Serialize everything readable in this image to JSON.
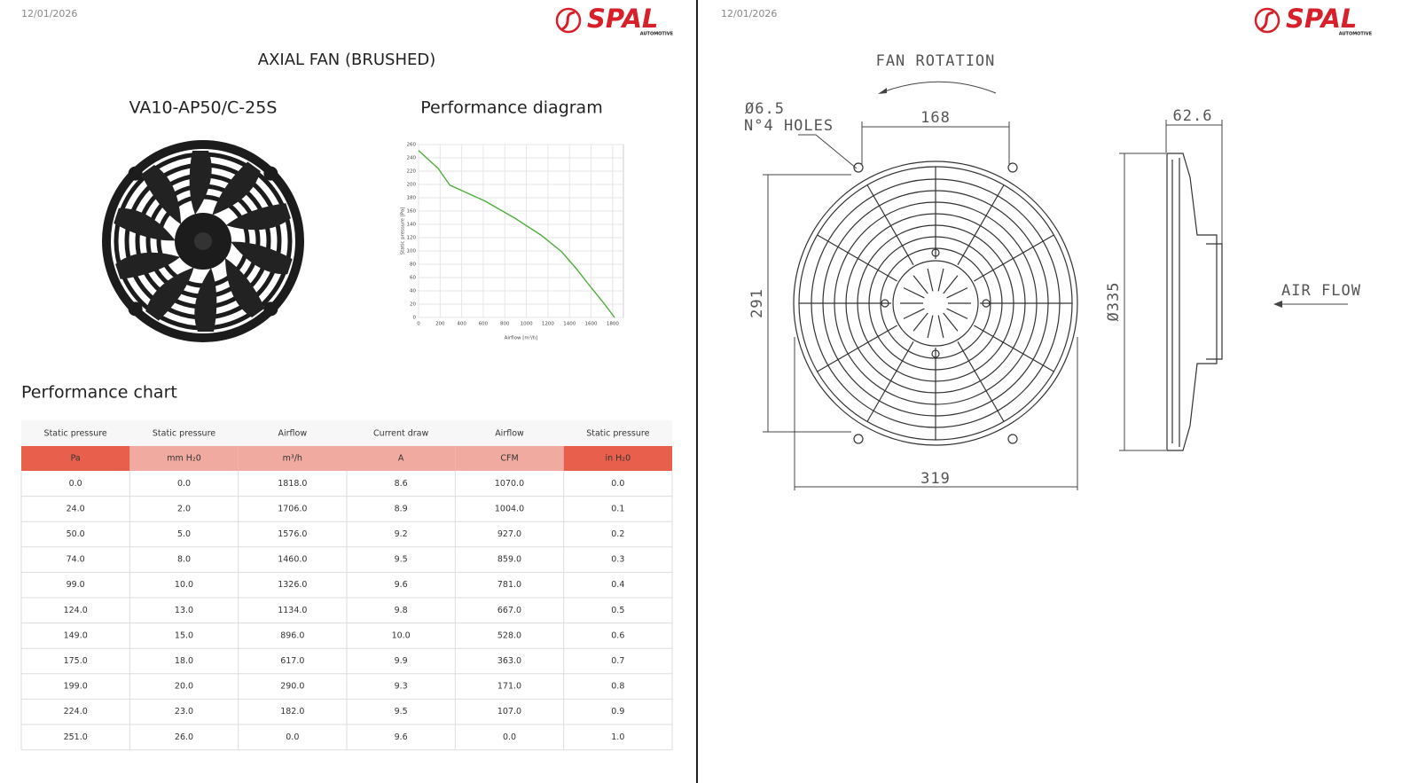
{
  "left": {
    "date": "12/01/2026",
    "logo": {
      "brand": "SPAL",
      "sub": "AUTOMOTIVE"
    },
    "title": "AXIAL FAN (BRUSHED)",
    "model": "VA10-AP50/C-25S",
    "diagram_title": "Performance diagram",
    "chart_title": "Performance chart"
  },
  "chart_data": {
    "type": "line",
    "x_label": "Airflow [m³/h]",
    "y_label": "Static pressure [Pa]",
    "x": [
      0,
      182,
      290,
      617,
      896,
      1134,
      1326,
      1460,
      1576,
      1706,
      1818
    ],
    "series": [
      {
        "color": "#4caf3a",
        "values": [
          251,
          224,
          199,
          175,
          149,
          124,
          99,
          74,
          50,
          24,
          0
        ]
      }
    ],
    "xlim": [
      0,
      1900
    ],
    "ylim": [
      0,
      260
    ],
    "xticks": [
      0,
      200,
      400,
      600,
      800,
      1000,
      1200,
      1400,
      1600,
      1800
    ],
    "yticks": [
      0,
      20,
      40,
      60,
      80,
      100,
      120,
      140,
      160,
      180,
      200,
      220,
      240,
      260
    ],
    "grid": true
  },
  "table": {
    "headers": [
      "Static pressure",
      "Static pressure",
      "Airflow",
      "Current draw",
      "Airflow",
      "Static pressure"
    ],
    "units": [
      "Pa",
      "mm H₂0",
      "m³/h",
      "A",
      "CFM",
      "in H₂0"
    ],
    "rows": [
      [
        "0.0",
        "0.0",
        "1818.0",
        "8.6",
        "1070.0",
        "0.0"
      ],
      [
        "24.0",
        "2.0",
        "1706.0",
        "8.9",
        "1004.0",
        "0.1"
      ],
      [
        "50.0",
        "5.0",
        "1576.0",
        "9.2",
        "927.0",
        "0.2"
      ],
      [
        "74.0",
        "8.0",
        "1460.0",
        "9.5",
        "859.0",
        "0.3"
      ],
      [
        "99.0",
        "10.0",
        "1326.0",
        "9.6",
        "781.0",
        "0.4"
      ],
      [
        "124.0",
        "13.0",
        "1134.0",
        "9.8",
        "667.0",
        "0.5"
      ],
      [
        "149.0",
        "15.0",
        "896.0",
        "10.0",
        "528.0",
        "0.6"
      ],
      [
        "175.0",
        "18.0",
        "617.0",
        "9.9",
        "363.0",
        "0.7"
      ],
      [
        "199.0",
        "20.0",
        "290.0",
        "9.3",
        "171.0",
        "0.8"
      ],
      [
        "224.0",
        "23.0",
        "182.0",
        "9.5",
        "107.0",
        "0.9"
      ],
      [
        "251.0",
        "26.0",
        "0.0",
        "9.6",
        "0.0",
        "1.0"
      ]
    ]
  },
  "right": {
    "date": "12/01/2026",
    "logo": {
      "brand": "SPAL",
      "sub": "AUTOMOTIVE"
    },
    "drawing": {
      "rotation": "FAN ROTATION",
      "hole_dia": "Ø6.5",
      "holes": "N°4 HOLES",
      "bolt": "168",
      "height": "291",
      "width": "319",
      "depth": "62.6",
      "dia": "Ø335",
      "air": "AIR FLOW"
    }
  }
}
